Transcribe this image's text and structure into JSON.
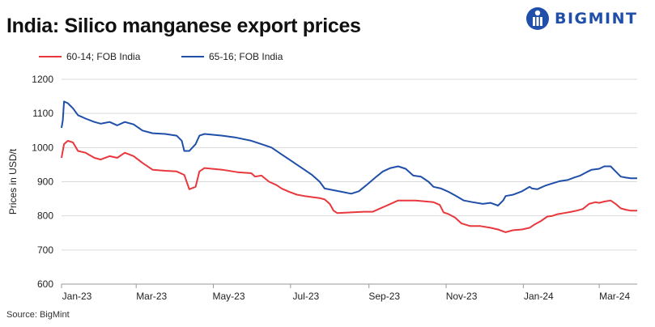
{
  "header": {
    "title": "India: Silico manganese export prices",
    "brand": "BIGMINT"
  },
  "footer": {
    "source": "Source: BigMint"
  },
  "colors": {
    "series_red": "#e8383d",
    "series_blue": "#1f4fa8",
    "brand": "#1f4fa8"
  },
  "chart_data": {
    "type": "line",
    "ylabel": "Prices in USD/t",
    "ylim": [
      600,
      1200
    ],
    "yticks": [
      600,
      700,
      800,
      900,
      1000,
      1100,
      1200
    ],
    "xlim": [
      "2023-01-01",
      "2024-03-31"
    ],
    "xticks": [
      {
        "label": "Jan-23",
        "date": "2023-01-01"
      },
      {
        "label": "Mar-23",
        "date": "2023-03-01"
      },
      {
        "label": "May-23",
        "date": "2023-05-01"
      },
      {
        "label": "Jul-23",
        "date": "2023-07-01"
      },
      {
        "label": "Sep-23",
        "date": "2023-09-01"
      },
      {
        "label": "Nov-23",
        "date": "2023-11-01"
      },
      {
        "label": "Jan-24",
        "date": "2024-01-01"
      },
      {
        "label": "Mar-24",
        "date": "2024-03-01"
      }
    ],
    "grid": "horizontal",
    "legend_position": "top-left",
    "series": [
      {
        "name": "60-14; FOB India",
        "color": "#e8383d",
        "points": [
          [
            "2023-01-01",
            970
          ],
          [
            "2023-01-03",
            1010
          ],
          [
            "2023-01-06",
            1020
          ],
          [
            "2023-01-10",
            1015
          ],
          [
            "2023-01-14",
            990
          ],
          [
            "2023-01-20",
            985
          ],
          [
            "2023-01-27",
            970
          ],
          [
            "2023-02-01",
            965
          ],
          [
            "2023-02-08",
            975
          ],
          [
            "2023-02-14",
            970
          ],
          [
            "2023-02-20",
            985
          ],
          [
            "2023-02-27",
            975
          ],
          [
            "2023-03-06",
            955
          ],
          [
            "2023-03-14",
            935
          ],
          [
            "2023-03-24",
            932
          ],
          [
            "2023-04-02",
            930
          ],
          [
            "2023-04-08",
            920
          ],
          [
            "2023-04-12",
            878
          ],
          [
            "2023-04-17",
            885
          ],
          [
            "2023-04-20",
            930
          ],
          [
            "2023-04-24",
            940
          ],
          [
            "2023-05-08",
            935
          ],
          [
            "2023-05-20",
            928
          ],
          [
            "2023-05-31",
            925
          ],
          [
            "2023-06-03",
            915
          ],
          [
            "2023-06-08",
            918
          ],
          [
            "2023-06-14",
            900
          ],
          [
            "2023-06-20",
            890
          ],
          [
            "2023-06-24",
            880
          ],
          [
            "2023-06-30",
            870
          ],
          [
            "2023-07-06",
            862
          ],
          [
            "2023-07-12",
            858
          ],
          [
            "2023-07-18",
            855
          ],
          [
            "2023-07-24",
            852
          ],
          [
            "2023-07-28",
            848
          ],
          [
            "2023-08-01",
            835
          ],
          [
            "2023-08-04",
            815
          ],
          [
            "2023-08-07",
            808
          ],
          [
            "2023-08-18",
            810
          ],
          [
            "2023-08-28",
            812
          ],
          [
            "2023-09-04",
            812
          ],
          [
            "2023-09-12",
            825
          ],
          [
            "2023-09-18",
            835
          ],
          [
            "2023-09-24",
            845
          ],
          [
            "2023-10-08",
            845
          ],
          [
            "2023-10-22",
            840
          ],
          [
            "2023-10-27",
            832
          ],
          [
            "2023-10-30",
            810
          ],
          [
            "2023-11-03",
            805
          ],
          [
            "2023-11-08",
            795
          ],
          [
            "2023-11-13",
            778
          ],
          [
            "2023-11-20",
            770
          ],
          [
            "2023-11-28",
            770
          ],
          [
            "2023-12-06",
            765
          ],
          [
            "2023-12-12",
            760
          ],
          [
            "2023-12-18",
            752
          ],
          [
            "2023-12-24",
            758
          ],
          [
            "2023-12-31",
            760
          ],
          [
            "2024-01-06",
            765
          ],
          [
            "2024-01-10",
            775
          ],
          [
            "2024-01-15",
            785
          ],
          [
            "2024-01-20",
            798
          ],
          [
            "2024-01-24",
            800
          ],
          [
            "2024-01-28",
            805
          ],
          [
            "2024-02-02",
            808
          ],
          [
            "2024-02-08",
            812
          ],
          [
            "2024-02-12",
            815
          ],
          [
            "2024-02-17",
            820
          ],
          [
            "2024-02-22",
            835
          ],
          [
            "2024-02-27",
            840
          ],
          [
            "2024-03-01",
            838
          ],
          [
            "2024-03-05",
            842
          ],
          [
            "2024-03-10",
            845
          ],
          [
            "2024-03-14",
            835
          ],
          [
            "2024-03-18",
            822
          ],
          [
            "2024-03-22",
            818
          ],
          [
            "2024-03-26",
            815
          ],
          [
            "2024-03-31",
            815
          ]
        ]
      },
      {
        "name": "65-16; FOB India",
        "color": "#1f4fa8",
        "points": [
          [
            "2023-01-01",
            1058
          ],
          [
            "2023-01-02",
            1080
          ],
          [
            "2023-01-03",
            1135
          ],
          [
            "2023-01-06",
            1130
          ],
          [
            "2023-01-10",
            1115
          ],
          [
            "2023-01-14",
            1095
          ],
          [
            "2023-01-20",
            1085
          ],
          [
            "2023-01-27",
            1075
          ],
          [
            "2023-02-01",
            1070
          ],
          [
            "2023-02-08",
            1075
          ],
          [
            "2023-02-14",
            1065
          ],
          [
            "2023-02-20",
            1075
          ],
          [
            "2023-02-27",
            1068
          ],
          [
            "2023-03-06",
            1050
          ],
          [
            "2023-03-14",
            1042
          ],
          [
            "2023-03-24",
            1040
          ],
          [
            "2023-04-02",
            1035
          ],
          [
            "2023-04-06",
            1020
          ],
          [
            "2023-04-08",
            990
          ],
          [
            "2023-04-12",
            990
          ],
          [
            "2023-04-17",
            1010
          ],
          [
            "2023-04-20",
            1035
          ],
          [
            "2023-04-24",
            1040
          ],
          [
            "2023-05-08",
            1035
          ],
          [
            "2023-05-18",
            1030
          ],
          [
            "2023-05-31",
            1020
          ],
          [
            "2023-06-08",
            1010
          ],
          [
            "2023-06-16",
            1000
          ],
          [
            "2023-06-24",
            980
          ],
          [
            "2023-06-30",
            965
          ],
          [
            "2023-07-06",
            950
          ],
          [
            "2023-07-12",
            935
          ],
          [
            "2023-07-18",
            920
          ],
          [
            "2023-07-24",
            900
          ],
          [
            "2023-07-28",
            880
          ],
          [
            "2023-08-04",
            875
          ],
          [
            "2023-08-11",
            870
          ],
          [
            "2023-08-18",
            865
          ],
          [
            "2023-08-24",
            872
          ],
          [
            "2023-08-30",
            890
          ],
          [
            "2023-09-06",
            912
          ],
          [
            "2023-09-12",
            930
          ],
          [
            "2023-09-18",
            940
          ],
          [
            "2023-09-24",
            945
          ],
          [
            "2023-09-30",
            938
          ],
          [
            "2023-10-06",
            918
          ],
          [
            "2023-10-12",
            915
          ],
          [
            "2023-10-18",
            900
          ],
          [
            "2023-10-22",
            885
          ],
          [
            "2023-10-28",
            880
          ],
          [
            "2023-11-03",
            870
          ],
          [
            "2023-11-08",
            860
          ],
          [
            "2023-11-15",
            845
          ],
          [
            "2023-11-22",
            840
          ],
          [
            "2023-11-30",
            835
          ],
          [
            "2023-12-06",
            838
          ],
          [
            "2023-12-12",
            830
          ],
          [
            "2023-12-16",
            845
          ],
          [
            "2023-12-18",
            858
          ],
          [
            "2023-12-24",
            862
          ],
          [
            "2023-12-31",
            872
          ],
          [
            "2024-01-06",
            885
          ],
          [
            "2024-01-08",
            880
          ],
          [
            "2024-01-12",
            878
          ],
          [
            "2024-01-18",
            888
          ],
          [
            "2024-01-24",
            895
          ],
          [
            "2024-01-30",
            902
          ],
          [
            "2024-02-05",
            905
          ],
          [
            "2024-02-10",
            912
          ],
          [
            "2024-02-15",
            918
          ],
          [
            "2024-02-20",
            928
          ],
          [
            "2024-02-24",
            935
          ],
          [
            "2024-03-01",
            938
          ],
          [
            "2024-03-05",
            945
          ],
          [
            "2024-03-10",
            945
          ],
          [
            "2024-03-14",
            930
          ],
          [
            "2024-03-18",
            915
          ],
          [
            "2024-03-22",
            912
          ],
          [
            "2024-03-26",
            910
          ],
          [
            "2024-03-31",
            910
          ]
        ]
      }
    ]
  }
}
